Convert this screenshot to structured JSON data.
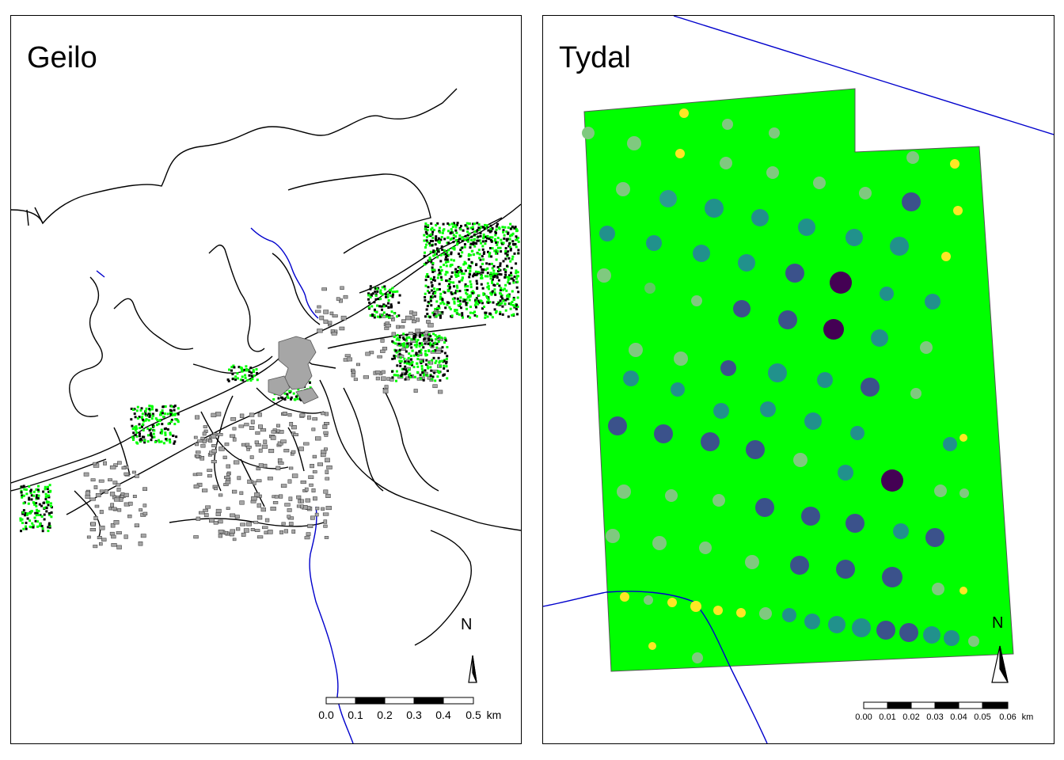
{
  "panels": {
    "geilo": {
      "title": "Geilo",
      "north_label": "N",
      "scale": {
        "ticks": [
          "0.0",
          "0.1",
          "0.2",
          "0.3",
          "0.4",
          "0.5"
        ],
        "unit": "km"
      }
    },
    "tydal": {
      "title": "Tydal",
      "north_label": "N",
      "scale": {
        "ticks": [
          "0.00",
          "0.01",
          "0.02",
          "0.03",
          "0.04",
          "0.05",
          "0.06"
        ],
        "unit": "km"
      }
    }
  },
  "colors": {
    "road": "#000000",
    "river": "#0000cc",
    "building": "#a6a6a6",
    "vegetation": "#00ff00",
    "plot_fill": "#00ff00",
    "viridis_dark": "#440154",
    "viridis_yellow": "#fde725"
  }
}
